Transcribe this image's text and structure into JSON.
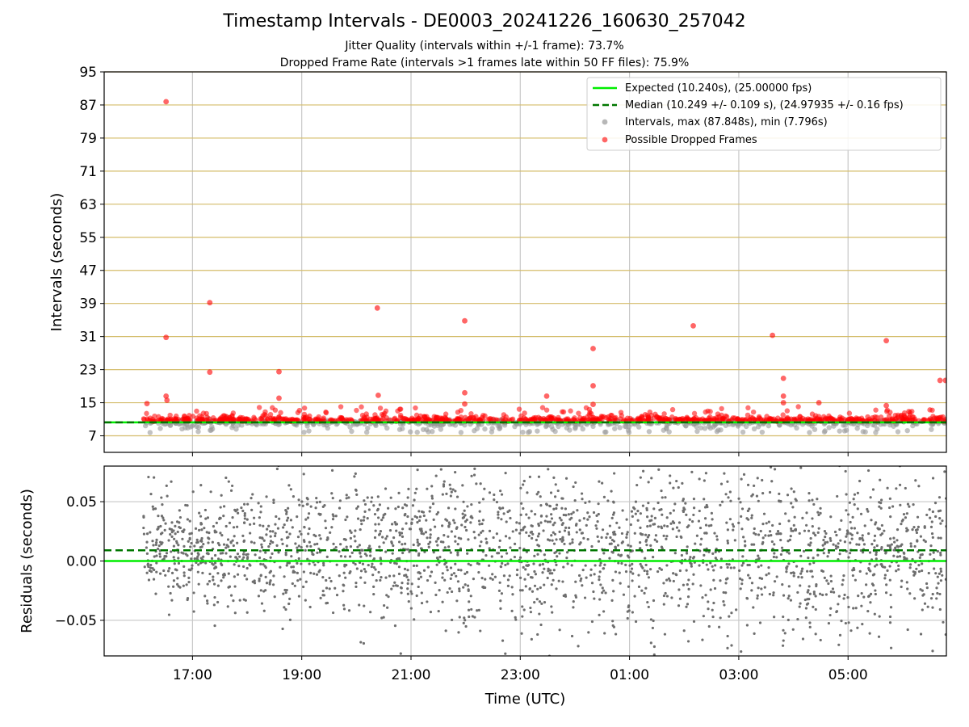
{
  "title": "Timestamp Intervals - DE0003_20241226_160630_257042",
  "subtitle_lines": [
    "Jitter Quality (intervals within +/-1 frame): 73.7%",
    "Dropped Frame Rate (intervals >1 frames late within 50 FF files): 75.9%"
  ],
  "colors": {
    "expected": "#00ee00",
    "median": "#007700",
    "intervals": "#999999",
    "dropped": "#ff0000",
    "horizontal_grid": "#d4bc6a",
    "vertical_grid": "#c8c8c8",
    "residuals": "#6e6e6e"
  },
  "chart_data": [
    {
      "type": "scatter",
      "panel": "intervals",
      "xlabel": "",
      "ylabel": "Intervals (seconds)",
      "x_range": [
        "15:23",
        "06:48"
      ],
      "x_ticks": [
        "17:00",
        "19:00",
        "21:00",
        "23:00",
        "01:00",
        "03:00",
        "05:00"
      ],
      "ylim": [
        3,
        95
      ],
      "y_ticks": [
        7,
        15,
        23,
        31,
        39,
        47,
        55,
        63,
        71,
        79,
        87,
        95
      ],
      "grid": true,
      "legend_position": "top-right",
      "legend": [
        "Expected (10.240s), (25.00000 fps)",
        "Median (10.249 +/- 0.109 s), (24.97935 +/- 0.16 fps)",
        "Intervals, max (87.848s), min (7.796s)",
        "Possible Dropped Frames"
      ],
      "expected_interval": 10.24,
      "median_interval": 10.249,
      "data_x_range": [
        "16:06",
        "06:48"
      ],
      "interval_max": 87.848,
      "interval_min": 7.796,
      "series": [
        {
          "name": "Possible Dropped Frames",
          "points": [
            {
              "x": "16:31",
              "y": 87.8
            },
            {
              "x": "16:31",
              "y": 30.8
            },
            {
              "x": "16:31",
              "y": 16.6
            },
            {
              "x": "16:32",
              "y": 15.6
            },
            {
              "x": "16:10",
              "y": 14.8
            },
            {
              "x": "17:19",
              "y": 39.2
            },
            {
              "x": "17:19",
              "y": 22.4
            },
            {
              "x": "18:35",
              "y": 22.5
            },
            {
              "x": "18:35",
              "y": 16.1
            },
            {
              "x": "20:23",
              "y": 37.9
            },
            {
              "x": "20:24",
              "y": 16.8
            },
            {
              "x": "21:59",
              "y": 34.8
            },
            {
              "x": "21:59",
              "y": 17.4
            },
            {
              "x": "21:59",
              "y": 14.7
            },
            {
              "x": "23:29",
              "y": 16.6
            },
            {
              "x": "00:20",
              "y": 28.1
            },
            {
              "x": "00:20",
              "y": 19.1
            },
            {
              "x": "00:20",
              "y": 14.6
            },
            {
              "x": "02:10",
              "y": 33.6
            },
            {
              "x": "03:37",
              "y": 31.3
            },
            {
              "x": "03:49",
              "y": 20.9
            },
            {
              "x": "03:49",
              "y": 16.6
            },
            {
              "x": "03:49",
              "y": 15.0
            },
            {
              "x": "04:28",
              "y": 15.0
            },
            {
              "x": "05:42",
              "y": 30.0
            },
            {
              "x": "05:42",
              "y": 14.3
            },
            {
              "x": "06:41",
              "y": 20.4
            },
            {
              "x": "06:47",
              "y": 20.4
            }
          ]
        }
      ]
    },
    {
      "type": "scatter",
      "panel": "residuals",
      "xlabel": "Time (UTC)",
      "ylabel": "Residuals (seconds)",
      "x_range": [
        "15:23",
        "06:48"
      ],
      "x_ticks": [
        "17:00",
        "19:00",
        "21:00",
        "23:00",
        "01:00",
        "03:00",
        "05:00"
      ],
      "ylim": [
        -0.08,
        0.08
      ],
      "y_ticks": [
        -0.05,
        0.0,
        0.05
      ],
      "y_tick_labels": [
        "−0.05",
        "0.00",
        "0.05"
      ],
      "grid": true,
      "expected_line": 0.0,
      "median_line": 0.009,
      "residual_spread": 0.026,
      "data_x_range": [
        "16:06",
        "06:48"
      ]
    }
  ]
}
